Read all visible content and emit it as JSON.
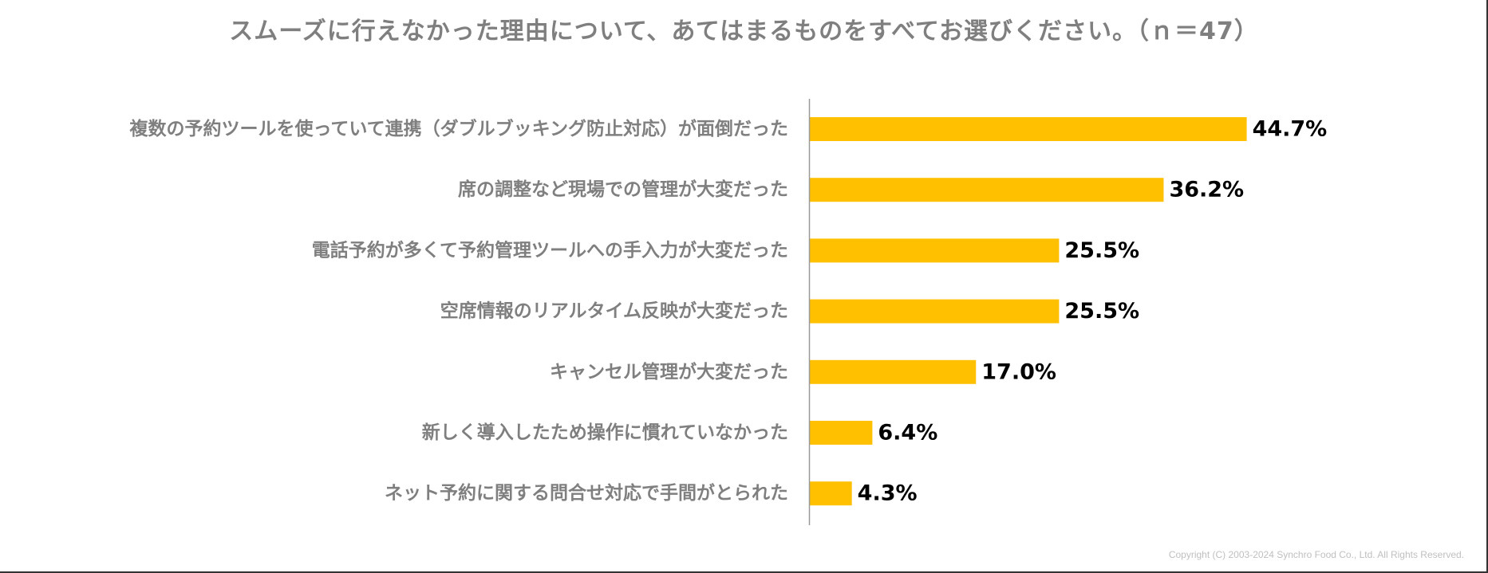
{
  "chart_data": {
    "type": "bar",
    "orientation": "horizontal",
    "title": "スムーズに行えなかった理由について、あてはまるものをすべてお選びください。（ｎ＝47）",
    "categories": [
      "複数の予約ツールを使っていて連携（ダブルブッキング防止対応）が面倒だった",
      "席の調整など現場での管理が大変だった",
      "電話予約が多くて予約管理ツールへの手入力が大変だった",
      "空席情報のリアルタイム反映が大変だった",
      "キャンセル管理が大変だった",
      "新しく導入したため操作に慣れていなかった",
      "ネット予約に関する問合せ対応で手間がとられた"
    ],
    "values": [
      44.7,
      36.2,
      25.5,
      25.5,
      17.0,
      6.4,
      4.3
    ],
    "data_labels": [
      "44.7%",
      "36.2%",
      "25.5%",
      "25.5%",
      "17.0%",
      "6.4%",
      "4.3%"
    ],
    "xlim": [
      0,
      100
    ],
    "grid": false,
    "legend": "none",
    "bar_color": "#ffc000",
    "label_color": "#7f7f7f",
    "value_color": "#000000",
    "axis_color": "#999999"
  },
  "footer": {
    "copyright": "Copyright (C) 2003-2024   Synchro Food Co., Ltd. All Rights Reserved."
  }
}
